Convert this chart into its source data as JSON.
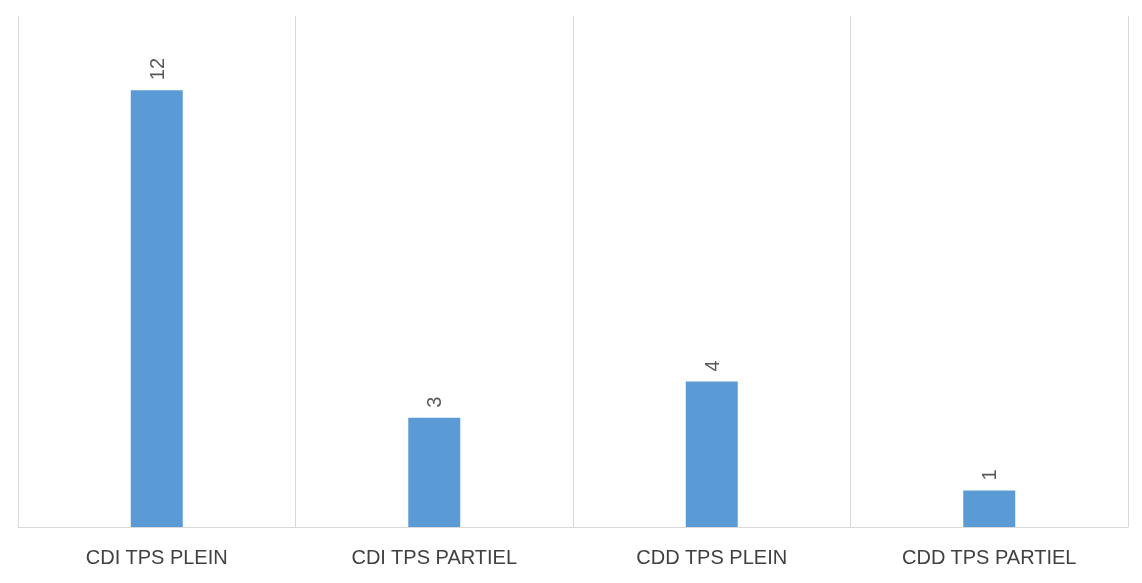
{
  "chart_data": {
    "type": "bar",
    "categories": [
      "CDI TPS PLEIN",
      "CDI TPS PARTIEL",
      "CDD TPS PLEIN",
      "CDD TPS PARTIEL"
    ],
    "values": [
      12,
      3,
      4,
      1
    ],
    "color": "#5b9bd5",
    "data_labels": true,
    "grid": "x"
  }
}
